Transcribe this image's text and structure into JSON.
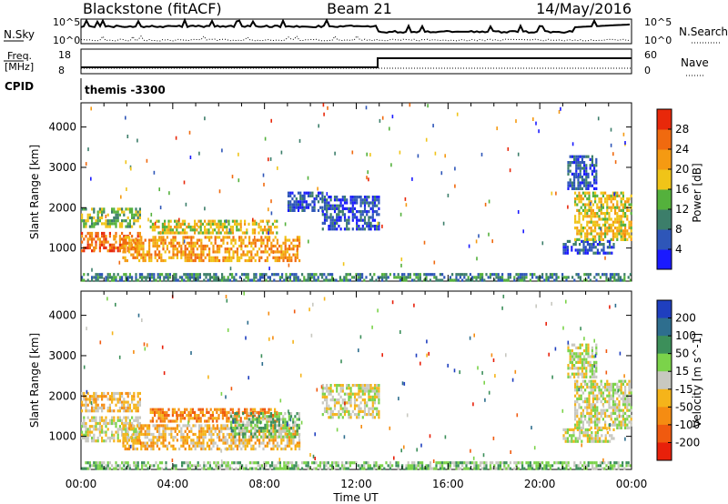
{
  "header": {
    "station": "Blackstone (fitACF)",
    "beam": "Beam 21",
    "date": "14/May/2016"
  },
  "status_panels": {
    "nsky_label": "N.Sky",
    "nsearch_label": "N.Search",
    "nsky_ticks": [
      "10^5",
      "10^0"
    ],
    "nsearch_ticks": [
      "10^5",
      "10^0"
    ],
    "freq_label_1": "Freq.",
    "freq_label_2": "[MHz]",
    "freq_ticks": [
      "18",
      "8"
    ],
    "nave_label": "Nave",
    "nave_ticks": [
      "60",
      "0"
    ],
    "cpid_label": "CPID",
    "cpid_value": "themis -3300"
  },
  "chart_data": [
    {
      "type": "heatmap",
      "panel": "power",
      "ylabel": "Slant Range [km]",
      "xlabel": "",
      "x_ticks": [
        "00:00",
        "04:00",
        "08:00",
        "12:00",
        "16:00",
        "20:00",
        "00:00"
      ],
      "y_ticks": [
        1000,
        2000,
        3000,
        4000
      ],
      "xlim_hours": [
        0,
        24
      ],
      "ylim_km": [
        180,
        4600
      ],
      "colorbar": {
        "label": "Power [dB]",
        "ticks": [
          "4",
          "8",
          "12",
          "16",
          "20",
          "24",
          "28"
        ],
        "colors": [
          "#1a1aff",
          "#2e56b8",
          "#3c7e6a",
          "#54b13c",
          "#f0c418",
          "#f59a12",
          "#f06a0f",
          "#e8280a"
        ]
      },
      "regions": [
        {
          "x0": 0.0,
          "x1": 2.6,
          "y0": 900,
          "y1": 1400,
          "level": 6
        },
        {
          "x0": 0.0,
          "x1": 2.6,
          "y0": 1500,
          "y1": 2000,
          "level": 3
        },
        {
          "x0": 1.8,
          "x1": 9.5,
          "y0": 700,
          "y1": 1300,
          "level": 5
        },
        {
          "x0": 3.0,
          "x1": 8.5,
          "y0": 1400,
          "y1": 1700,
          "level": 4
        },
        {
          "x0": 9.0,
          "x1": 10.5,
          "y0": 1900,
          "y1": 2400,
          "level": 1
        },
        {
          "x0": 10.5,
          "x1": 13.0,
          "y0": 1500,
          "y1": 2300,
          "level": 1
        },
        {
          "x0": 21.0,
          "x1": 23.2,
          "y0": 900,
          "y1": 1200,
          "level": 1
        },
        {
          "x0": 21.5,
          "x1": 24.0,
          "y0": 1200,
          "y1": 2400,
          "level": 4
        },
        {
          "x0": 21.2,
          "x1": 22.5,
          "y0": 2500,
          "y1": 3300,
          "level": 1
        },
        {
          "x0": 0.0,
          "x1": 24.0,
          "y0": 200,
          "y1": 380,
          "level": 2
        }
      ]
    },
    {
      "type": "heatmap",
      "panel": "velocity",
      "ylabel": "Slant Range [km]",
      "xlabel": "Time UT",
      "x_ticks": [
        "00:00",
        "04:00",
        "08:00",
        "12:00",
        "16:00",
        "20:00",
        "00:00"
      ],
      "y_ticks": [
        1000,
        2000,
        3000,
        4000
      ],
      "xlim_hours": [
        0,
        24
      ],
      "ylim_km": [
        180,
        4600
      ],
      "colorbar": {
        "label": "Velocity [m s^-1]",
        "ticks": [
          "200",
          "100",
          "50",
          "15",
          "-15",
          "-50",
          "-100",
          "-200"
        ],
        "colors": [
          "#1f3fbf",
          "#2e6e8e",
          "#3c8f5a",
          "#7bd34a",
          "#c8c8c0",
          "#f5b41a",
          "#f58c12",
          "#f05a0f",
          "#e8200a"
        ]
      },
      "regions": [
        {
          "x0": 0.0,
          "x1": 2.6,
          "y0": 900,
          "y1": 1500,
          "level": 4
        },
        {
          "x0": 0.0,
          "x1": 2.6,
          "y0": 1600,
          "y1": 2100,
          "level": 5
        },
        {
          "x0": 1.8,
          "x1": 9.5,
          "y0": 700,
          "y1": 1300,
          "level": 5
        },
        {
          "x0": 3.0,
          "x1": 8.5,
          "y0": 1400,
          "y1": 1700,
          "level": 6
        },
        {
          "x0": 6.5,
          "x1": 9.5,
          "y0": 1000,
          "y1": 1600,
          "level": 3
        },
        {
          "x0": 10.5,
          "x1": 13.0,
          "y0": 1500,
          "y1": 2300,
          "level": 4
        },
        {
          "x0": 21.0,
          "x1": 23.2,
          "y0": 900,
          "y1": 1200,
          "level": 4
        },
        {
          "x0": 21.5,
          "x1": 24.0,
          "y0": 1200,
          "y1": 2400,
          "level": 4
        },
        {
          "x0": 21.2,
          "x1": 22.5,
          "y0": 2500,
          "y1": 3300,
          "level": 4
        },
        {
          "x0": 0.0,
          "x1": 24.0,
          "y0": 200,
          "y1": 380,
          "level": 3
        }
      ]
    }
  ]
}
